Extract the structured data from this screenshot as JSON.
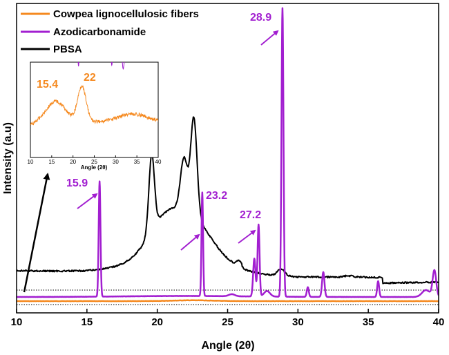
{
  "colors": {
    "cowpea": "#F5891F",
    "azo": "#A21FD0",
    "pbsa": "#000000"
  },
  "chart_data": {
    "type": "line",
    "xlabel": "Angle (2θ)",
    "ylabel": "Intensity (a.u)",
    "xlim": [
      10,
      40
    ],
    "x_ticks": [
      "10",
      "15",
      "20",
      "25",
      "30",
      "35",
      "40"
    ],
    "legend": {
      "placement": "top-left",
      "entries": [
        {
          "name": "Cowpea lignocellulosic fibers",
          "color_key": "cowpea"
        },
        {
          "name": "Azodicarbonamide",
          "color_key": "azo"
        },
        {
          "name": "PBSA",
          "color_key": "pbsa"
        }
      ]
    },
    "peak_labels": [
      {
        "text": "15.9",
        "x": 15.9,
        "series": "azo"
      },
      {
        "text": "23.2",
        "x": 23.2,
        "series": "azo"
      },
      {
        "text": "27.2",
        "x": 27.2,
        "series": "azo"
      },
      {
        "text": "28.9",
        "x": 28.9,
        "series": "azo"
      }
    ],
    "inset": {
      "series": "cowpea",
      "xlim": [
        10,
        40
      ],
      "x_ticks": [
        "10",
        "15",
        "20",
        "25",
        "30",
        "35",
        "40"
      ],
      "xlabel": "Angle (2θ)",
      "peak_labels": [
        {
          "text": "15.4",
          "x": 15.4
        },
        {
          "text": "22",
          "x": 22
        }
      ]
    }
  }
}
